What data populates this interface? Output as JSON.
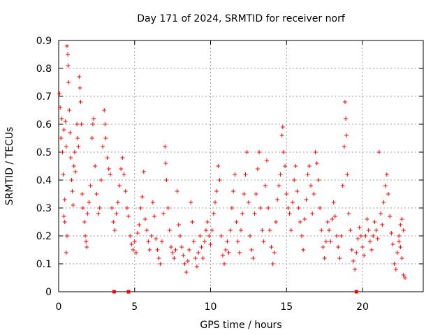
{
  "chart_data": {
    "type": "scatter",
    "title": "Day 171 of 2024, SRMTID for receiver norf",
    "xlabel": "GPS time / hours",
    "ylabel": "SRMTID / TECUs",
    "xlim": [
      0,
      24
    ],
    "ylim": [
      0,
      0.9
    ],
    "xticks": [
      0,
      5,
      10,
      15,
      20
    ],
    "xtick_labels": [
      "0",
      "5",
      "10",
      "15",
      "20"
    ],
    "yticks": [
      0,
      0.1,
      0.2,
      0.3,
      0.4,
      0.5,
      0.6,
      0.7,
      0.8,
      0.9
    ],
    "ytick_labels": [
      "0",
      "0.1",
      "0.2",
      "0.3",
      "0.4",
      "0.5",
      "0.6",
      "0.7",
      "0.8",
      "0.9"
    ],
    "grid": true,
    "marker": "+",
    "color": "#ff0000",
    "series": [
      {
        "name": "SRMTID",
        "points": [
          [
            0.05,
            0.71
          ],
          [
            0.1,
            0.66
          ],
          [
            0.15,
            0.55
          ],
          [
            0.2,
            0.62
          ],
          [
            0.25,
            0.5
          ],
          [
            0.3,
            0.42
          ],
          [
            0.35,
            0.58
          ],
          [
            0.4,
            0.33
          ],
          [
            0.45,
            0.61
          ],
          [
            0.5,
            0.52
          ],
          [
            0.55,
            0.88
          ],
          [
            0.6,
            0.85
          ],
          [
            0.62,
            0.81
          ],
          [
            0.65,
            0.75
          ],
          [
            0.7,
            0.65
          ],
          [
            0.75,
            0.57
          ],
          [
            0.8,
            0.48
          ],
          [
            0.85,
            0.4
          ],
          [
            0.9,
            0.36
          ],
          [
            0.95,
            0.31
          ],
          [
            0.5,
            0.14
          ],
          [
            0.55,
            0.2
          ],
          [
            0.35,
            0.27
          ],
          [
            0.4,
            0.25
          ],
          [
            1.0,
            0.45
          ],
          [
            1.05,
            0.5
          ],
          [
            1.1,
            0.43
          ],
          [
            1.2,
            0.6
          ],
          [
            1.25,
            0.55
          ],
          [
            1.3,
            0.52
          ],
          [
            1.35,
            0.77
          ],
          [
            1.4,
            0.73
          ],
          [
            1.45,
            0.68
          ],
          [
            1.5,
            0.6
          ],
          [
            1.55,
            0.35
          ],
          [
            1.6,
            0.3
          ],
          [
            1.7,
            0.25
          ],
          [
            1.75,
            0.2
          ],
          [
            1.8,
            0.18
          ],
          [
            1.85,
            0.16
          ],
          [
            1.9,
            0.28
          ],
          [
            2.0,
            0.32
          ],
          [
            2.1,
            0.38
          ],
          [
            2.2,
            0.55
          ],
          [
            2.25,
            0.6
          ],
          [
            2.3,
            0.62
          ],
          [
            2.4,
            0.45
          ],
          [
            2.5,
            0.35
          ],
          [
            2.6,
            0.28
          ],
          [
            2.7,
            0.3
          ],
          [
            2.8,
            0.4
          ],
          [
            2.9,
            0.52
          ],
          [
            3.0,
            0.65
          ],
          [
            3.05,
            0.6
          ],
          [
            3.1,
            0.55
          ],
          [
            3.2,
            0.48
          ],
          [
            3.3,
            0.44
          ],
          [
            3.4,
            0.42
          ],
          [
            3.5,
            0.3
          ],
          [
            3.6,
            0.25
          ],
          [
            3.7,
            0.22
          ],
          [
            3.8,
            0.28
          ],
          [
            3.9,
            0.32
          ],
          [
            4.0,
            0.38
          ],
          [
            4.1,
            0.44
          ],
          [
            4.2,
            0.48
          ],
          [
            4.3,
            0.42
          ],
          [
            4.4,
            0.36
          ],
          [
            4.5,
            0.3
          ],
          [
            4.6,
            0.27
          ],
          [
            4.7,
            0.2
          ],
          [
            4.8,
            0.17
          ],
          [
            4.9,
            0.15
          ],
          [
            5.0,
            0.18
          ],
          [
            5.1,
            0.14
          ],
          [
            5.2,
            0.21
          ],
          [
            5.3,
            0.24
          ],
          [
            5.4,
            0.3
          ],
          [
            5.5,
            0.34
          ],
          [
            5.6,
            0.43
          ],
          [
            5.7,
            0.26
          ],
          [
            5.8,
            0.22
          ],
          [
            5.9,
            0.18
          ],
          [
            6.0,
            0.15
          ],
          [
            6.1,
            0.2
          ],
          [
            6.2,
            0.32
          ],
          [
            6.3,
            0.27
          ],
          [
            6.4,
            0.19
          ],
          [
            6.5,
            0.15
          ],
          [
            6.6,
            0.12
          ],
          [
            6.7,
            0.1
          ],
          [
            6.8,
            0.18
          ],
          [
            6.9,
            0.28
          ],
          [
            7.0,
            0.52
          ],
          [
            7.05,
            0.46
          ],
          [
            7.1,
            0.4
          ],
          [
            7.2,
            0.3
          ],
          [
            7.3,
            0.22
          ],
          [
            7.4,
            0.16
          ],
          [
            7.5,
            0.14
          ],
          [
            7.6,
            0.12
          ],
          [
            7.7,
            0.15
          ],
          [
            7.8,
            0.36
          ],
          [
            7.9,
            0.24
          ],
          [
            8.0,
            0.2
          ],
          [
            8.1,
            0.16
          ],
          [
            8.2,
            0.13
          ],
          [
            8.3,
            0.1
          ],
          [
            8.4,
            0.07
          ],
          [
            8.5,
            0.11
          ],
          [
            8.6,
            0.15
          ],
          [
            8.7,
            0.32
          ],
          [
            8.8,
            0.25
          ],
          [
            8.9,
            0.18
          ],
          [
            9.0,
            0.12
          ],
          [
            9.1,
            0.09
          ],
          [
            9.2,
            0.14
          ],
          [
            9.3,
            0.2
          ],
          [
            9.4,
            0.16
          ],
          [
            9.5,
            0.12
          ],
          [
            9.6,
            0.18
          ],
          [
            9.7,
            0.22
          ],
          [
            9.8,
            0.25
          ],
          [
            9.9,
            0.2
          ],
          [
            10.0,
            0.17
          ],
          [
            10.1,
            0.22
          ],
          [
            10.2,
            0.28
          ],
          [
            10.3,
            0.32
          ],
          [
            10.4,
            0.36
          ],
          [
            10.5,
            0.45
          ],
          [
            10.6,
            0.4
          ],
          [
            10.7,
            0.2
          ],
          [
            10.8,
            0.13
          ],
          [
            10.9,
            0.1
          ],
          [
            11.0,
            0.15
          ],
          [
            11.1,
            0.18
          ],
          [
            11.2,
            0.14
          ],
          [
            11.3,
            0.22
          ],
          [
            11.4,
            0.3
          ],
          [
            11.5,
            0.36
          ],
          [
            11.6,
            0.42
          ],
          [
            11.7,
            0.25
          ],
          [
            11.8,
            0.18
          ],
          [
            11.9,
            0.14
          ],
          [
            12.0,
            0.22
          ],
          [
            12.1,
            0.28
          ],
          [
            12.2,
            0.35
          ],
          [
            12.3,
            0.42
          ],
          [
            12.4,
            0.5
          ],
          [
            12.5,
            0.32
          ],
          [
            12.6,
            0.2
          ],
          [
            12.7,
            0.15
          ],
          [
            12.8,
            0.12
          ],
          [
            12.9,
            0.28
          ],
          [
            13.0,
            0.35
          ],
          [
            13.1,
            0.44
          ],
          [
            13.2,
            0.5
          ],
          [
            13.3,
            0.3
          ],
          [
            13.4,
            0.22
          ],
          [
            13.5,
            0.18
          ],
          [
            13.6,
            0.38
          ],
          [
            13.7,
            0.47
          ],
          [
            13.8,
            0.3
          ],
          [
            13.9,
            0.22
          ],
          [
            14.0,
            0.16
          ],
          [
            14.1,
            0.1
          ],
          [
            14.2,
            0.14
          ],
          [
            14.3,
            0.25
          ],
          [
            14.4,
            0.33
          ],
          [
            14.5,
            0.38
          ],
          [
            14.6,
            0.42
          ],
          [
            14.7,
            0.56
          ],
          [
            14.75,
            0.59
          ],
          [
            14.8,
            0.5
          ],
          [
            14.9,
            0.45
          ],
          [
            15.0,
            0.35
          ],
          [
            15.1,
            0.3
          ],
          [
            15.2,
            0.28
          ],
          [
            15.3,
            0.22
          ],
          [
            15.4,
            0.32
          ],
          [
            15.5,
            0.4
          ],
          [
            15.6,
            0.45
          ],
          [
            15.7,
            0.36
          ],
          [
            15.8,
            0.3
          ],
          [
            15.9,
            0.25
          ],
          [
            16.0,
            0.2
          ],
          [
            16.1,
            0.15
          ],
          [
            16.2,
            0.26
          ],
          [
            16.3,
            0.33
          ],
          [
            16.4,
            0.42
          ],
          [
            16.5,
            0.45
          ],
          [
            16.6,
            0.38
          ],
          [
            16.7,
            0.28
          ],
          [
            16.8,
            0.35
          ],
          [
            16.9,
            0.5
          ],
          [
            17.0,
            0.46
          ],
          [
            17.1,
            0.4
          ],
          [
            17.2,
            0.3
          ],
          [
            17.3,
            0.22
          ],
          [
            17.4,
            0.16
          ],
          [
            17.5,
            0.12
          ],
          [
            17.6,
            0.18
          ],
          [
            17.7,
            0.25
          ],
          [
            17.8,
            0.22
          ],
          [
            17.9,
            0.18
          ],
          [
            18.0,
            0.26
          ],
          [
            18.1,
            0.32
          ],
          [
            18.2,
            0.27
          ],
          [
            18.3,
            0.2
          ],
          [
            18.4,
            0.16
          ],
          [
            18.5,
            0.12
          ],
          [
            18.6,
            0.2
          ],
          [
            18.7,
            0.38
          ],
          [
            18.8,
            0.52
          ],
          [
            18.85,
            0.68
          ],
          [
            18.9,
            0.62
          ],
          [
            18.95,
            0.56
          ],
          [
            19.0,
            0.42
          ],
          [
            19.1,
            0.28
          ],
          [
            19.2,
            0.22
          ],
          [
            19.3,
            0.15
          ],
          [
            19.4,
            0.11
          ],
          [
            19.5,
            0.08
          ],
          [
            19.6,
            0.14
          ],
          [
            19.7,
            0.19
          ],
          [
            19.8,
            0.23
          ],
          [
            19.9,
            0.2
          ],
          [
            20.0,
            0.16
          ],
          [
            20.1,
            0.13
          ],
          [
            20.2,
            0.2
          ],
          [
            20.3,
            0.26
          ],
          [
            20.4,
            0.22
          ],
          [
            20.5,
            0.18
          ],
          [
            20.6,
            0.15
          ],
          [
            20.7,
            0.2
          ],
          [
            20.8,
            0.25
          ],
          [
            20.9,
            0.22
          ],
          [
            21.0,
            0.19
          ],
          [
            21.1,
            0.5
          ],
          [
            21.2,
            0.28
          ],
          [
            21.3,
            0.24
          ],
          [
            21.4,
            0.32
          ],
          [
            21.5,
            0.38
          ],
          [
            21.6,
            0.42
          ],
          [
            21.7,
            0.35
          ],
          [
            21.8,
            0.27
          ],
          [
            21.9,
            0.21
          ],
          [
            22.0,
            0.17
          ],
          [
            22.1,
            0.1
          ],
          [
            22.2,
            0.08
          ],
          [
            22.3,
            0.14
          ],
          [
            22.4,
            0.2
          ],
          [
            22.5,
            0.16
          ],
          [
            22.6,
            0.12
          ],
          [
            22.7,
            0.06
          ],
          [
            22.8,
            0.05
          ],
          [
            22.7,
            0.22
          ],
          [
            22.6,
            0.26
          ],
          [
            22.5,
            0.24
          ],
          [
            22.4,
            0.18
          ]
        ]
      },
      {
        "name": "zero markers",
        "marker": "square",
        "points": [
          [
            3.65,
            0
          ],
          [
            4.6,
            0
          ],
          [
            19.6,
            0
          ]
        ]
      }
    ]
  }
}
